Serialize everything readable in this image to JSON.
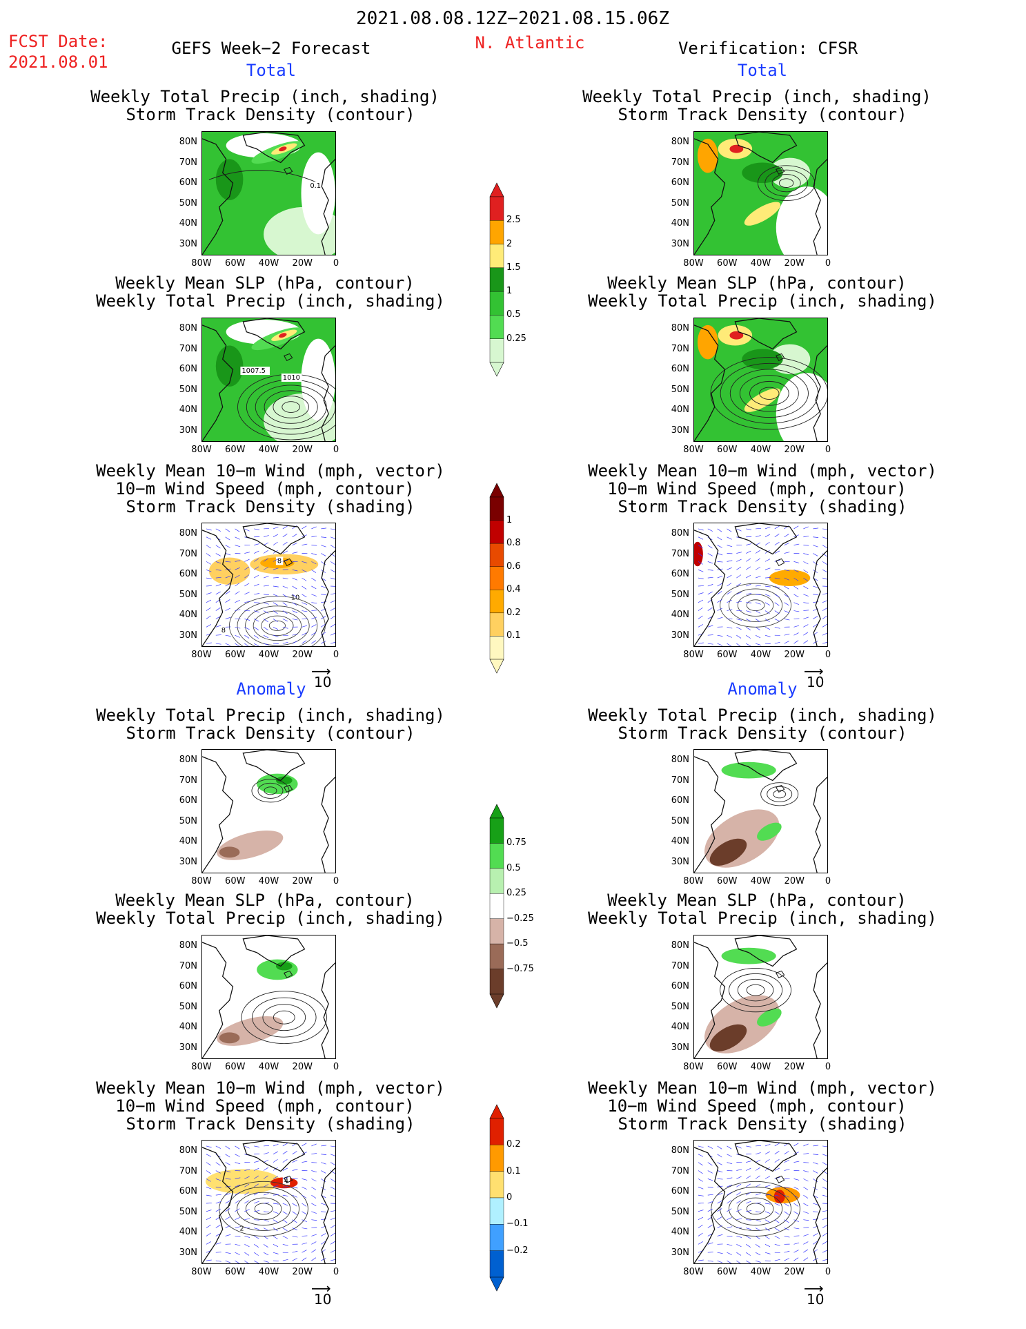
{
  "header": {
    "period": "2021.08.08.12Z−2021.08.15.06Z",
    "fcst_label": "FCST Date:",
    "fcst_date": "2021.08.01",
    "forecast_title": "GEFS Week−2 Forecast",
    "region": "N. Atlantic",
    "verification": "Verification: CFSR"
  },
  "sections": {
    "total": "Total",
    "anomaly": "Anomaly"
  },
  "panels": {
    "precip_track": [
      "Weekly Total Precip (inch, shading)",
      "Storm Track Density (contour)"
    ],
    "slp_precip": [
      "Weekly Mean SLP (hPa, contour)",
      "Weekly Total Precip (inch, shading)"
    ],
    "wind_track": [
      "Weekly Mean 10−m Wind (mph, vector)",
      "10−m Wind Speed (mph, contour)",
      "Storm Track Density (shading)"
    ]
  },
  "axes": {
    "lat": [
      "80N",
      "70N",
      "60N",
      "50N",
      "40N",
      "30N"
    ],
    "lon": [
      "80W",
      "60W",
      "40W",
      "20W",
      "0"
    ]
  },
  "contour_labels": {
    "total_precip_track": "0.1",
    "slp_a": "1007.5",
    "slp_b": "1010",
    "wind_a": "8",
    "wind_b": "10",
    "wind_c": "8",
    "anom_wind_a": "4",
    "anom_wind_b": "2"
  },
  "vector_ref": "10",
  "colorbars": {
    "precip_total": [
      "2.5",
      "2",
      "1.5",
      "1",
      "0.5",
      "0.25"
    ],
    "track_total": [
      "1",
      "0.8",
      "0.6",
      "0.4",
      "0.2",
      "0.1"
    ],
    "precip_anom": [
      "0.75",
      "0.5",
      "0.25",
      "−0.25",
      "−0.5",
      "−0.75"
    ],
    "track_anom": [
      "0.2",
      "0.1",
      "0",
      "−0.1",
      "−0.2"
    ]
  },
  "colors": {
    "precip": [
      "#d7f7d0",
      "#52dc52",
      "#33c233",
      "#199619",
      "#ffeb78",
      "#ffa500",
      "#e02020"
    ],
    "track": [
      "#fff8c0",
      "#ffd060",
      "#ffaa00",
      "#ff7a00",
      "#e84a00",
      "#c00000",
      "#7a0000"
    ],
    "anom_precip": [
      "#6b3d2a",
      "#9a6b58",
      "#d6b3a8",
      "#ffffff",
      "#b8f0b0",
      "#52dc52",
      "#17a017"
    ],
    "anom_track": [
      "#0060d0",
      "#40a0ff",
      "#b0f0ff",
      "#ffe070",
      "#ff9a00",
      "#e02000"
    ]
  }
}
